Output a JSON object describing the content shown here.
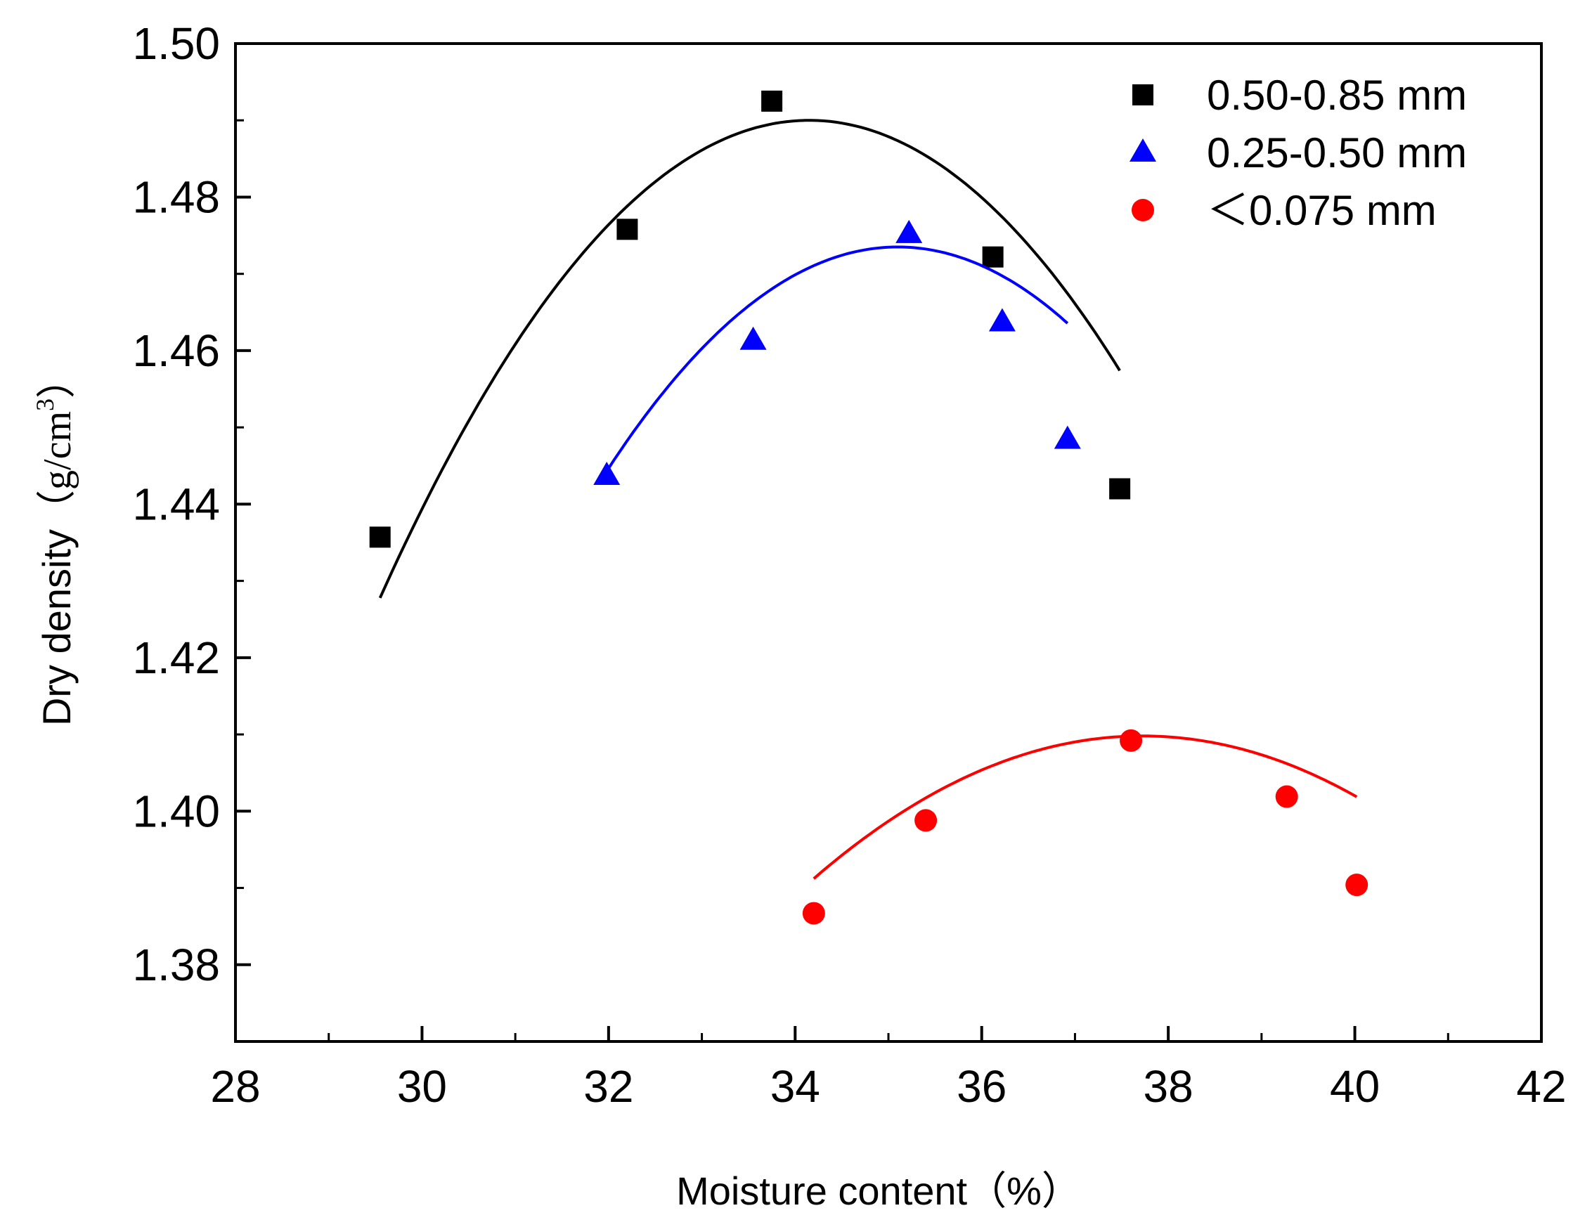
{
  "chart_data": {
    "type": "scatter",
    "title": "",
    "xlabel": "Moisture content（%）",
    "ylabel": {
      "text": "Dry density",
      "unit_open": "（",
      "unit_base": "g/cm",
      "unit_sup": "3",
      "unit_close": "）"
    },
    "xlim": [
      28,
      42
    ],
    "ylim": [
      1.37,
      1.5
    ],
    "x_ticks": [
      28,
      30,
      32,
      34,
      36,
      38,
      40,
      42
    ],
    "x_tick_labels": [
      "28",
      "30",
      "32",
      "34",
      "36",
      "38",
      "40",
      "42"
    ],
    "y_ticks": [
      1.38,
      1.4,
      1.42,
      1.44,
      1.46,
      1.48,
      1.5
    ],
    "y_tick_labels": [
      "1.38",
      "1.40",
      "1.42",
      "1.44",
      "1.46",
      "1.48",
      "1.50"
    ],
    "grid": false,
    "legend_position": "top-right",
    "series": [
      {
        "name": "0.50-0.85 mm",
        "label": "0.50-0.85 mm",
        "marker": "square",
        "color": "#000000",
        "x": [
          29.55,
          32.2,
          33.75,
          36.12,
          37.48
        ],
        "y": [
          1.4357,
          1.4758,
          1.4925,
          1.4722,
          1.442
        ],
        "fit_coeffs": [
          1.49,
          -0.00294,
          34.15
        ]
      },
      {
        "name": "0.25-0.50 mm",
        "label": "0.25-0.50 mm",
        "marker": "triangle",
        "color": "#0000ff",
        "x": [
          31.98,
          33.55,
          35.22,
          36.22,
          36.92
        ],
        "y": [
          1.4437,
          1.4613,
          1.4752,
          1.4637,
          1.4484
        ],
        "fit_coeffs": [
          1.4735,
          -0.003,
          35.1
        ]
      },
      {
        "name": "<0.075 mm",
        "label": "＜0.075 mm",
        "marker": "circle",
        "color": "#ff0000",
        "x": [
          34.2,
          35.4,
          37.6,
          39.27,
          40.02
        ],
        "y": [
          1.3867,
          1.3988,
          1.4092,
          1.4019,
          1.3904
        ],
        "fit_coeffs": [
          1.4098,
          -0.0015,
          37.72
        ]
      }
    ]
  }
}
